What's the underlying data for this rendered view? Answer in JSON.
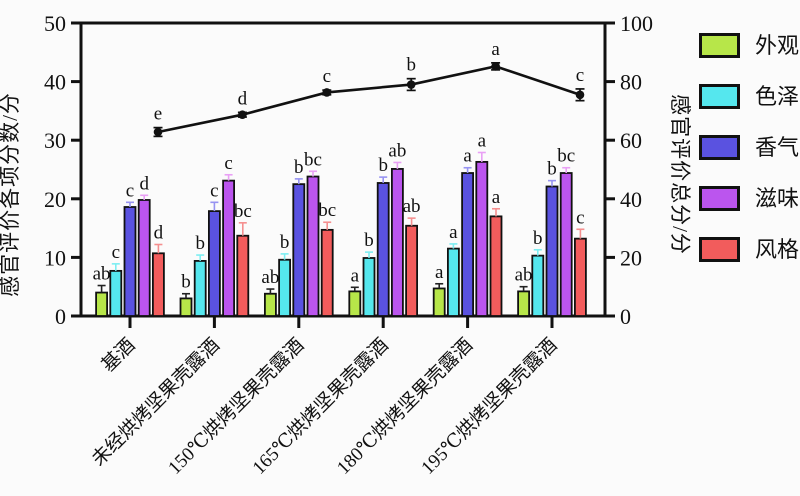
{
  "chart_data": {
    "type": "bar",
    "subtype": "grouped-bars-with-line-overlay",
    "categories": [
      "基酒",
      "未经烘烤坚果壳露酒",
      "150℃烘烤坚果壳露酒",
      "165℃烘烤坚果壳露酒",
      "180℃烘烤坚果壳露酒",
      "195℃烘烤坚果壳露酒"
    ],
    "left_axis": {
      "label": "感官评价各项分数/分",
      "ticks": [
        0,
        10,
        20,
        30,
        40,
        50
      ],
      "range": [
        0,
        50
      ]
    },
    "right_axis": {
      "label": "感官评价总分/分",
      "ticks": [
        0,
        20,
        40,
        60,
        80,
        100
      ],
      "range": [
        0,
        100
      ]
    },
    "grid": false,
    "legend_position": "right",
    "bar_series": [
      {
        "name": "外观",
        "color": "#b7e649",
        "error_color": "#222222",
        "axis": "left",
        "values": [
          4.0,
          3.0,
          3.8,
          4.2,
          4.7,
          4.2
        ],
        "errors": [
          1.2,
          0.8,
          0.8,
          0.7,
          0.8,
          0.8
        ],
        "letters": [
          "ab",
          "b",
          "ab",
          "a",
          "a",
          "ab"
        ]
      },
      {
        "name": "色泽",
        "color": "#55e7ee",
        "error_color": "#7deef2",
        "axis": "left",
        "values": [
          7.7,
          9.4,
          9.6,
          9.9,
          11.5,
          10.3
        ],
        "errors": [
          1.2,
          1.0,
          1.0,
          1.0,
          0.8,
          1.0
        ],
        "letters": [
          "c",
          "b",
          "b",
          "b",
          "a",
          "b"
        ]
      },
      {
        "name": "香气",
        "color": "#5a52e0",
        "error_color": "#9793f2",
        "axis": "left",
        "values": [
          18.6,
          17.9,
          22.5,
          22.7,
          24.4,
          22.1
        ],
        "errors": [
          0.8,
          1.5,
          0.9,
          1.0,
          0.9,
          1.0
        ],
        "letters": [
          "c",
          "c",
          "b",
          "b",
          "a",
          "b"
        ]
      },
      {
        "name": "滋味",
        "color": "#bb55ee",
        "error_color": "#e9a0f5",
        "axis": "left",
        "values": [
          19.8,
          23.1,
          23.8,
          25.1,
          26.3,
          24.4
        ],
        "errors": [
          0.8,
          1.0,
          0.9,
          1.1,
          1.6,
          0.9
        ],
        "letters": [
          "d",
          "c",
          "bc",
          "ab",
          "a",
          "bc"
        ]
      },
      {
        "name": "风格",
        "color": "#f25c5c",
        "error_color": "#f58f8f",
        "axis": "left",
        "values": [
          10.7,
          13.7,
          14.7,
          15.4,
          17.0,
          13.2
        ],
        "errors": [
          1.5,
          2.2,
          1.3,
          1.3,
          1.3,
          1.6
        ],
        "letters": [
          "d",
          "bc",
          "bc",
          "ab",
          "a",
          "c"
        ]
      }
    ],
    "line_series": {
      "name": "感官评价总分",
      "color": "#111111",
      "axis": "right",
      "values": [
        62.8,
        68.7,
        76.3,
        79.0,
        85.2,
        75.5
      ],
      "errors": [
        1.5,
        0.8,
        0.8,
        2.0,
        1.2,
        2.0
      ],
      "letters": [
        "e",
        "d",
        "c",
        "b",
        "a",
        "c"
      ]
    }
  }
}
